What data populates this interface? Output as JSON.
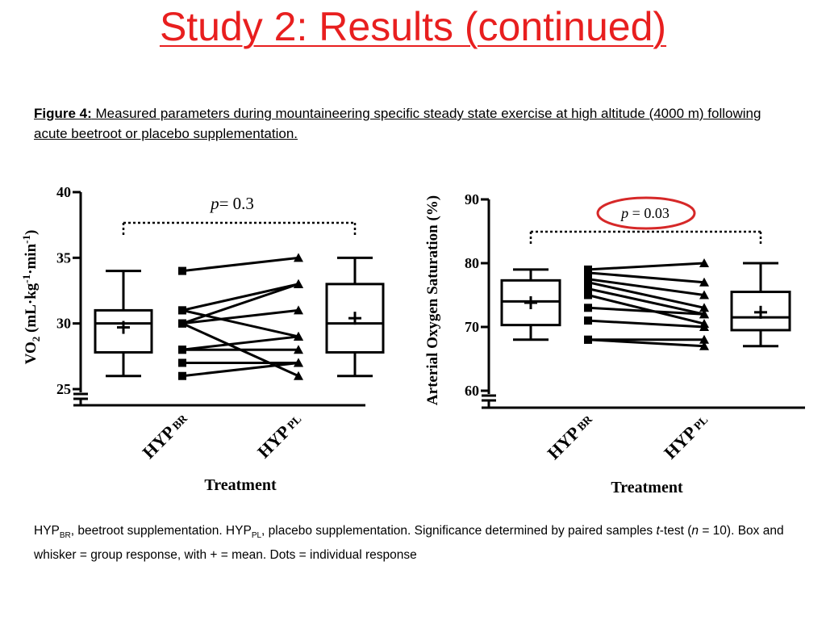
{
  "slide": {
    "title": "Study 2: Results (continued)"
  },
  "caption": {
    "label": "Figure 4:",
    "text": " Measured parameters during mountaineering specific steady state exercise  at high altitude (4000 m) following acute beetroot or placebo supplementation."
  },
  "footnote": {
    "hyp": "HYP",
    "br": "BR",
    "part1": ", beetroot supplementation. HYP",
    "pl": "PL",
    "part2": ", placebo supplementation. Significance determined by paired samples ",
    "t": "t",
    "part3": "-test (",
    "n": "n",
    "part4": " = 10). Box and whisker = group response, with + = mean. Dots = individual response"
  },
  "colors": {
    "title": "#e81f1f",
    "highlight_ellipse": "#d62828",
    "ink": "#000000"
  },
  "chart_data": [
    {
      "type": "box",
      "ylabel": "VO2 (mL·kg-1·min-1)",
      "xlabel": "Treatment",
      "ylim": [
        25,
        40
      ],
      "yticks": [
        25,
        30,
        35,
        40
      ],
      "axis_break": true,
      "categories": [
        "HYP BR",
        "HYP PL"
      ],
      "significance": {
        "label": "p= 0.3",
        "highlighted": false
      },
      "boxes": [
        {
          "group": "HYP BR",
          "min": 26,
          "q1": 27.8,
          "median": 30,
          "q3": 31,
          "max": 34,
          "mean": 29.7
        },
        {
          "group": "HYP PL",
          "min": 26,
          "q1": 27.8,
          "median": 30,
          "q3": 33,
          "max": 35,
          "mean": 30.4
        }
      ],
      "individual": [
        [
          34,
          35
        ],
        [
          31,
          33
        ],
        [
          31,
          29
        ],
        [
          30,
          33
        ],
        [
          30,
          31
        ],
        [
          30,
          26
        ],
        [
          28,
          29
        ],
        [
          28,
          28
        ],
        [
          27,
          27
        ],
        [
          26,
          27
        ]
      ]
    },
    {
      "type": "box",
      "ylabel": "Arterial Oxygen Saturation (%)",
      "xlabel": "Treatment",
      "ylim": [
        60,
        90
      ],
      "yticks": [
        60,
        70,
        80,
        90
      ],
      "axis_break": true,
      "categories": [
        "HYP BR",
        "HYP PL"
      ],
      "significance": {
        "label": "p = 0.03",
        "highlighted": true
      },
      "boxes": [
        {
          "group": "HYP BR",
          "min": 68,
          "q1": 70.3,
          "median": 74,
          "q3": 77.3,
          "max": 79,
          "mean": 73.8
        },
        {
          "group": "HYP PL",
          "min": 67,
          "q1": 69.5,
          "median": 71.5,
          "q3": 75.5,
          "max": 80,
          "mean": 72.3
        }
      ],
      "individual": [
        [
          79,
          80
        ],
        [
          78.5,
          77
        ],
        [
          77.5,
          75
        ],
        [
          77,
          73
        ],
        [
          76,
          72
        ],
        [
          75,
          70.5
        ],
        [
          73,
          72
        ],
        [
          71,
          70
        ],
        [
          68,
          68
        ],
        [
          68,
          67
        ]
      ]
    }
  ]
}
